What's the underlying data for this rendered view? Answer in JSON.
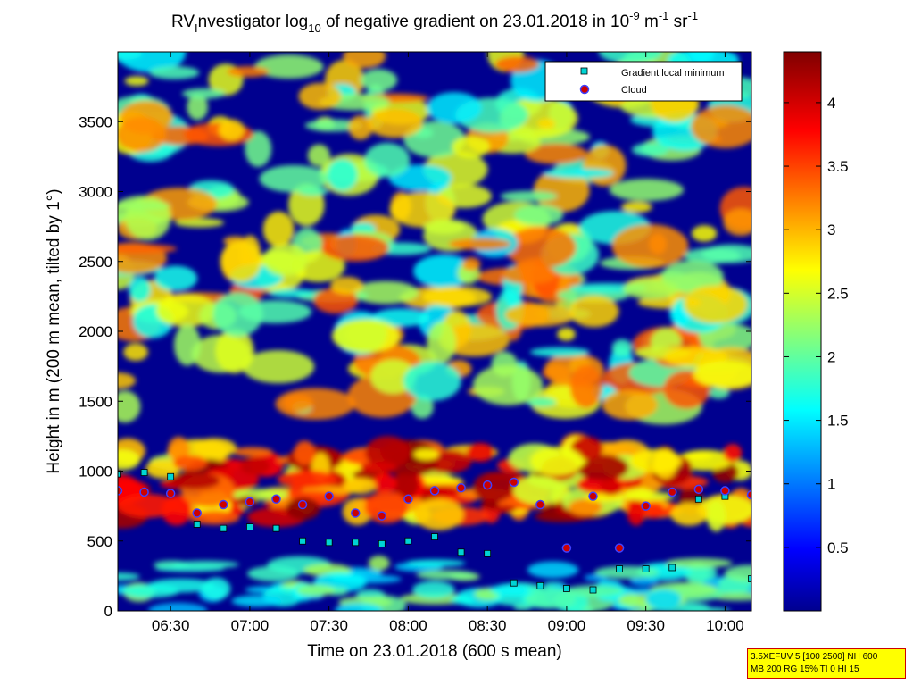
{
  "chart_data": {
    "type": "heatmap",
    "title_parts": {
      "prefix": "RV",
      "sub1": "I",
      "mid": "nvestigator log",
      "sub2": "10",
      "rest": " of negative gradient on 23.01.2018 in 10",
      "sup1": "-9",
      "unit1": " m",
      "sup2": "-1",
      "unit2": " sr",
      "sup3": "-1"
    },
    "xlabel": "Time on 23.01.2018 (600 s mean)",
    "ylabel": "Height in m (200 m mean, tilted by 1°)",
    "xlim": [
      "06:10",
      "10:10"
    ],
    "ylim": [
      0,
      4000
    ],
    "x_ticks": [
      "06:30",
      "07:00",
      "07:30",
      "08:00",
      "08:30",
      "09:00",
      "09:30",
      "10:00"
    ],
    "y_ticks": [
      0,
      500,
      1000,
      1500,
      2000,
      2500,
      3000,
      3500
    ],
    "colorbar": {
      "colormap": "jet",
      "range": [
        0,
        4.4
      ],
      "ticks": [
        0.5,
        1,
        1.5,
        2,
        2.5,
        3,
        3.5,
        4
      ]
    },
    "legend": {
      "placement": "top-right",
      "entries": [
        {
          "label": "Gradient local minimum",
          "marker": "square",
          "color": "#00d4d4"
        },
        {
          "label": "Cloud",
          "marker": "circle",
          "color": "#cc0000"
        }
      ]
    },
    "series": [
      {
        "name": "Gradient local minimum",
        "x": [
          "06:10",
          "06:20",
          "06:30",
          "06:40",
          "06:50",
          "07:00",
          "07:10",
          "07:20",
          "07:30",
          "07:40",
          "07:50",
          "08:00",
          "08:10",
          "08:20",
          "08:30",
          "08:40",
          "08:50",
          "09:00",
          "09:10",
          "09:20",
          "09:30",
          "09:40",
          "09:50",
          "10:00",
          "10:10"
        ],
        "y": [
          980,
          990,
          960,
          620,
          590,
          600,
          590,
          500,
          490,
          490,
          480,
          500,
          530,
          420,
          410,
          200,
          180,
          160,
          150,
          300,
          300,
          310,
          800,
          820,
          230
        ]
      },
      {
        "name": "Cloud",
        "x": [
          "06:10",
          "06:20",
          "06:30",
          "06:40",
          "06:50",
          "07:00",
          "07:10",
          "07:20",
          "07:30",
          "07:40",
          "07:50",
          "08:00",
          "08:10",
          "08:20",
          "08:30",
          "08:40",
          "08:50",
          "09:00",
          "09:10",
          "09:20",
          "09:30",
          "09:40",
          "09:50",
          "10:00",
          "10:10"
        ],
        "y": [
          860,
          850,
          840,
          700,
          760,
          780,
          800,
          760,
          820,
          700,
          680,
          800,
          860,
          880,
          900,
          920,
          760,
          450,
          820,
          450,
          750,
          850,
          870,
          860,
          830
        ]
      }
    ]
  },
  "infobox": {
    "line1": "3.5XEFUV 5 [100 2500] NH 600",
    "line2": "MB 200 RG 15% TI 0 HI 15"
  }
}
